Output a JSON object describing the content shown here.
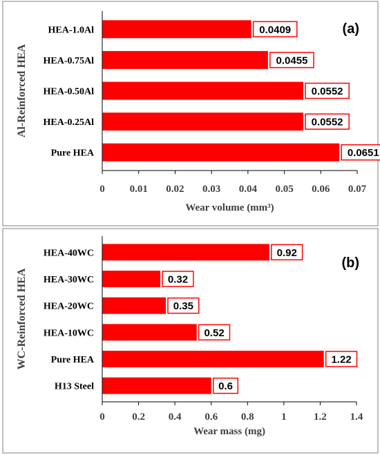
{
  "colors": {
    "bar": "#ff0000",
    "label_border": "#ff0000",
    "axis": "#000000",
    "panel_border": "#7f7f7f"
  },
  "chart_data": [
    {
      "type": "bar",
      "orientation": "horizontal",
      "panel_label": "(a)",
      "categories": [
        "HEA-1.0Al",
        "HEA-0.75Al",
        "HEA-0.50Al",
        "HEA-0.25Al",
        "Pure HEA"
      ],
      "values": [
        0.0409,
        0.0455,
        0.0552,
        0.0552,
        0.0651
      ],
      "data_labels": [
        "0.0409",
        "0.0455",
        "0.0552",
        "0.0552",
        "0.0651"
      ],
      "xlabel": "Wear volume (mm³)",
      "ylabel": "Al-Reinforced HEA",
      "xlim": [
        0,
        0.07
      ],
      "xticks": [
        0,
        0.01,
        0.02,
        0.03,
        0.04,
        0.05,
        0.06,
        0.07
      ],
      "xtick_labels": [
        "0",
        "0.01",
        "0.02",
        "0.03",
        "0.04",
        "0.05",
        "0.06",
        "0.07"
      ],
      "grid": false
    },
    {
      "type": "bar",
      "orientation": "horizontal",
      "panel_label": "(b)",
      "categories": [
        "HEA-40WC",
        "HEA-30WC",
        "HEA-20WC",
        "HEA-10WC",
        "Pure HEA",
        "H13 Steel"
      ],
      "values": [
        0.92,
        0.32,
        0.35,
        0.52,
        1.22,
        0.6
      ],
      "data_labels": [
        "0.92",
        "0.32",
        "0.35",
        "0.52",
        "1.22",
        "0.6"
      ],
      "xlabel": "Wear mass (mg)",
      "ylabel": "WC-Reinforced HEA",
      "xlim": [
        0,
        1.4
      ],
      "xticks": [
        0,
        0.2,
        0.4,
        0.6,
        0.8,
        1.0,
        1.2,
        1.4
      ],
      "xtick_labels": [
        "0",
        "0.2",
        "0.4",
        "0.6",
        "0.8",
        "1",
        "1.2",
        "1.4"
      ],
      "grid": false
    }
  ]
}
